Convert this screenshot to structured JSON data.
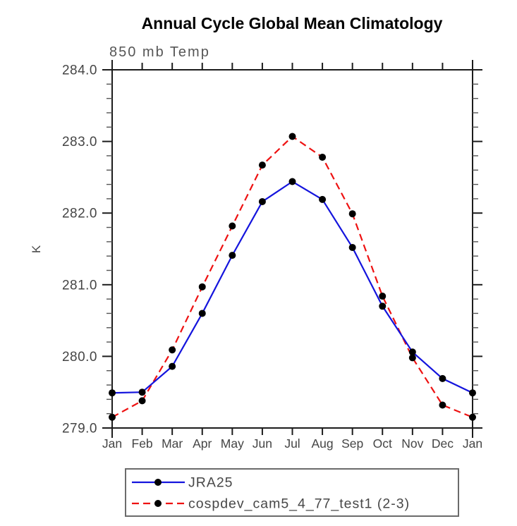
{
  "page": {
    "title": "Annual Cycle Global Mean Climatology"
  },
  "chart_data": {
    "type": "line",
    "title": "Annual Cycle Global Mean Climatology",
    "subtitle": "850 mb Temp",
    "ylabel": "K",
    "xlabel": "",
    "categories": [
      "Jan",
      "Feb",
      "Mar",
      "Apr",
      "May",
      "Jun",
      "Jul",
      "Aug",
      "Sep",
      "Oct",
      "Nov",
      "Dec",
      "Jan"
    ],
    "ylim": [
      279.0,
      284.0
    ],
    "ytick_interval": 1.0,
    "yminor_interval": 0.2,
    "ytick_labels": [
      "279.0",
      "280.0",
      "281.0",
      "282.0",
      "283.0",
      "284.0"
    ],
    "grid": false,
    "legend_position": "bottom-left-box",
    "axis_color": "#1c1c1c",
    "minor_tick_color": "#555555",
    "tick_label_color": "#454545",
    "subtitle_color": "#565656",
    "legend_border_color": "#6b6b6b",
    "series": [
      {
        "name": "JRA25",
        "line_color": "#1414dd",
        "line_style": "solid",
        "marker": "filled-circle",
        "marker_color": "#000000",
        "values": [
          279.49,
          279.5,
          279.86,
          280.6,
          281.41,
          282.16,
          282.44,
          282.19,
          281.52,
          280.7,
          280.06,
          279.69,
          279.49
        ]
      },
      {
        "name": "cospdev_cam5_4_77_test1 (2-3)",
        "line_color": "#ee1111",
        "line_style": "dashed",
        "marker": "filled-circle",
        "marker_color": "#000000",
        "values": [
          279.15,
          279.38,
          280.09,
          280.97,
          281.82,
          282.67,
          283.07,
          282.78,
          281.99,
          280.84,
          279.98,
          279.32,
          279.15
        ]
      }
    ]
  }
}
